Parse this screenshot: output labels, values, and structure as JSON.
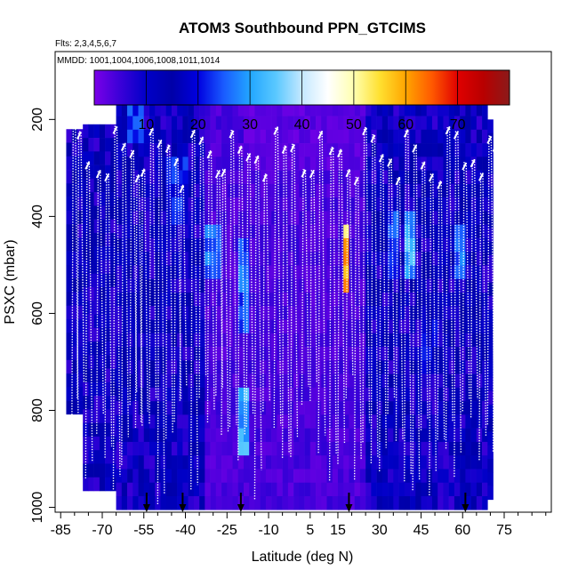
{
  "chart_data": {
    "type": "heatmap",
    "title": "ATOM3 Southbound PPN_GTCIMS",
    "flights_label": "Flts: 2,3,4,5,6,7",
    "dates_label": "MMDD: 1001,1004,1006,1008,1011,1014",
    "xlabel": "Latitude (deg N)",
    "ylabel": "PSXC (mbar)",
    "xlim": [
      -87,
      92
    ],
    "ylim": [
      1010,
      60
    ],
    "x_ticks": [
      -85,
      -70,
      -55,
      -40,
      -25,
      -10,
      5,
      15,
      30,
      45,
      60,
      75
    ],
    "x_tick_labels": [
      "-85",
      "-70",
      "-55",
      "-40",
      "-25",
      "-10",
      "5",
      "15",
      "30",
      "45",
      "60",
      "75"
    ],
    "x_minor_ticks": [
      -80,
      -75,
      -65,
      -60,
      -50,
      -45,
      -35,
      -30,
      -20,
      -15,
      -5,
      0,
      10,
      20,
      25,
      35,
      40,
      50,
      55,
      65,
      70,
      80,
      85,
      90
    ],
    "y_ticks": [
      200,
      400,
      600,
      800,
      1000
    ],
    "y_tick_labels": [
      "200",
      "400",
      "600",
      "800",
      "1000"
    ],
    "colorbar": {
      "range": [
        0,
        80
      ],
      "ticks": [
        10,
        20,
        30,
        40,
        50,
        60,
        70
      ],
      "tick_labels": [
        "10",
        "20",
        "30",
        "40",
        "50",
        "60",
        "70"
      ],
      "colors": [
        "#7b00e8",
        "#3a00d8",
        "#0000c8",
        "#0000a8",
        "#0000e0",
        "#1a5cff",
        "#22a6ff",
        "#5ac8ff",
        "#c4e8ff",
        "#ffffff",
        "#ffffb0",
        "#ffe030",
        "#ffa500",
        "#ff5a00",
        "#e00000",
        "#b80000",
        "#8b1a1a"
      ]
    },
    "data_range": {
      "lat": [
        -83,
        71
      ],
      "pressure_top": 165,
      "pressure_bottom": 1000
    },
    "enhanced_regions": [
      {
        "lat": [
          -60,
          -55
        ],
        "p": [
          170,
          260
        ],
        "value": 24
      },
      {
        "lat": [
          -46,
          -39
        ],
        "p": [
          280,
          420
        ],
        "value": 22
      },
      {
        "lat": [
          -33,
          -26
        ],
        "p": [
          420,
          520
        ],
        "value": 28
      },
      {
        "lat": [
          -21,
          -16
        ],
        "p": [
          450,
          650
        ],
        "value": 26
      },
      {
        "lat": [
          -20,
          -16
        ],
        "p": [
          760,
          900
        ],
        "value": 33
      },
      {
        "lat": [
          18,
          20
        ],
        "p": [
          420,
          560
        ],
        "value": 58
      },
      {
        "lat": [
          33,
          38
        ],
        "p": [
          380,
          520
        ],
        "value": 25
      },
      {
        "lat": [
          40,
          44
        ],
        "p": [
          400,
          520
        ],
        "value": 32
      },
      {
        "lat": [
          57,
          62
        ],
        "p": [
          430,
          520
        ],
        "value": 26
      },
      {
        "lat": [
          46,
          52
        ],
        "p": [
          600,
          720
        ],
        "value": 20
      }
    ],
    "arrows_lat": [
      -54,
      -41,
      -20,
      19,
      61
    ],
    "flight_profiles_lat": [
      -81,
      -79,
      -76,
      -72,
      -69,
      -66,
      -63,
      -60,
      -58,
      -56,
      -53,
      -50,
      -47,
      -44,
      -42,
      -38,
      -35,
      -32,
      -29,
      -27,
      -24,
      -21,
      -18,
      -15,
      -12,
      -8,
      -5,
      -2,
      2,
      5,
      8,
      12,
      15,
      18,
      21,
      24,
      27,
      30,
      33,
      36,
      39,
      42,
      45,
      48,
      51,
      54,
      57,
      60,
      63,
      66,
      69,
      71
    ]
  }
}
